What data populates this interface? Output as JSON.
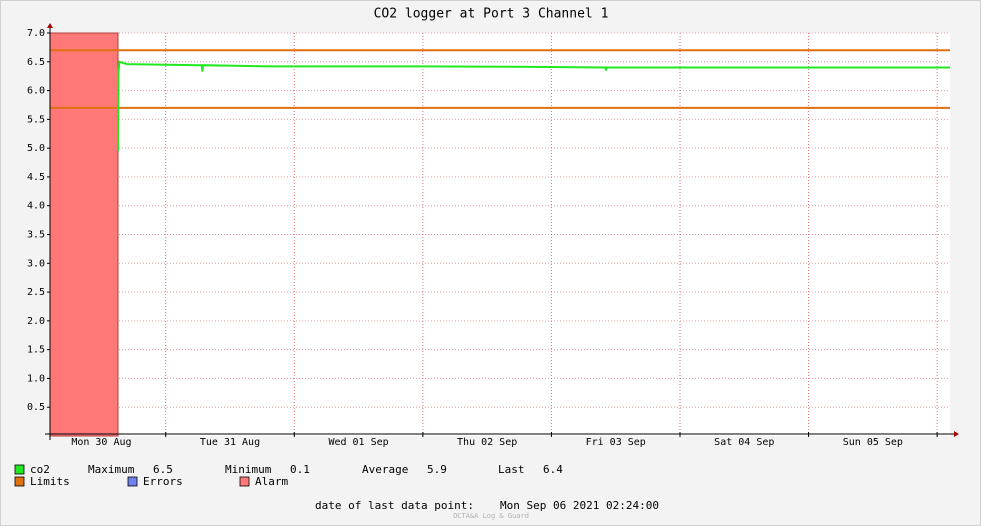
{
  "chart_data": {
    "type": "line",
    "title": "CO2 logger at Port 3 Channel 1",
    "xlim": [
      0.1,
      7.1
    ],
    "xticks": [
      {
        "value": 0.5,
        "label": "Mon 30 Aug"
      },
      {
        "value": 1.5,
        "label": "Tue 31 Aug"
      },
      {
        "value": 2.5,
        "label": "Wed 01 Sep"
      },
      {
        "value": 3.5,
        "label": "Thu 02 Sep"
      },
      {
        "value": 4.5,
        "label": "Fri 03 Sep"
      },
      {
        "value": 5.5,
        "label": "Sat 04 Sep"
      },
      {
        "value": 6.5,
        "label": "Sun 05 Sep"
      }
    ],
    "ylim": [
      0,
      7
    ],
    "yticks": [
      0.5,
      {
        "value": 1,
        "label": "1.0"
      },
      1.5,
      {
        "value": 2,
        "label": "2.0"
      },
      2.5,
      {
        "value": 3,
        "label": "3.0"
      },
      3.5,
      {
        "value": 4,
        "label": "4.0"
      },
      4.5,
      {
        "value": 5,
        "label": "5.0"
      },
      5.5,
      {
        "value": 6,
        "label": "6.0"
      },
      6.5,
      {
        "value": 7,
        "label": "7.0"
      }
    ],
    "grid": true,
    "series": [
      {
        "name": "co2",
        "color": "#22e822",
        "x": [
          0.629,
          0.632,
          0.64,
          0.7,
          1.0,
          1.28,
          1.285,
          1.29,
          1.8,
          3.0,
          4.0,
          4.42,
          4.425,
          4.43,
          5.5,
          7.1
        ],
        "values": [
          4.95,
          6.3,
          6.5,
          6.46,
          6.45,
          6.44,
          6.33,
          6.44,
          6.42,
          6.42,
          6.41,
          6.4,
          6.35,
          6.4,
          6.4,
          6.4
        ]
      }
    ],
    "limits": {
      "name": "Limits",
      "color": "#e07010",
      "values": [
        6.7,
        5.7
      ]
    },
    "errors": {
      "name": "Errors",
      "color": "#7080f0"
    },
    "alarm": {
      "name": "Alarm",
      "color": "#ff7878",
      "x": [
        0.1,
        0.629
      ]
    },
    "stats": [
      {
        "label": "Maximum",
        "value": 6.5
      },
      {
        "label": "Minimum",
        "value": 0.1
      },
      {
        "label": "Average",
        "value": 5.9
      },
      {
        "label": "Last",
        "value": 6.4
      }
    ],
    "footer": {
      "label": "date of last data point:",
      "value": "Mon Sep 06 2021 02:24:00"
    },
    "watermark": "OCTA&A Log & Guard"
  }
}
